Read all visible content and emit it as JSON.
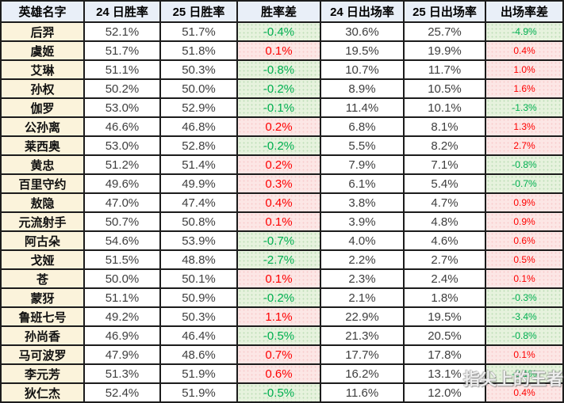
{
  "chart_data": {
    "type": "table",
    "columns": [
      "英雄名字",
      "24 日胜率",
      "25 日胜率",
      "胜率差",
      "24 日出场率",
      "25 日出场率",
      "出场率差"
    ],
    "rows": [
      [
        "后羿",
        "52.1%",
        "51.7%",
        "-0.4%",
        "30.6%",
        "25.7%",
        "-4.9%"
      ],
      [
        "虞姬",
        "51.7%",
        "51.8%",
        "0.1%",
        "19.5%",
        "19.9%",
        "0.4%"
      ],
      [
        "艾琳",
        "51.1%",
        "50.3%",
        "-0.8%",
        "10.7%",
        "11.7%",
        "1.0%"
      ],
      [
        "孙权",
        "50.2%",
        "50.0%",
        "-0.2%",
        "8.9%",
        "10.5%",
        "1.6%"
      ],
      [
        "伽罗",
        "53.0%",
        "52.9%",
        "-0.1%",
        "11.4%",
        "10.1%",
        "-1.3%"
      ],
      [
        "公孙离",
        "46.6%",
        "46.8%",
        "0.2%",
        "6.8%",
        "8.1%",
        "1.3%"
      ],
      [
        "莱西奥",
        "53.0%",
        "52.8%",
        "-0.2%",
        "5.5%",
        "8.2%",
        "2.7%"
      ],
      [
        "黄忠",
        "51.2%",
        "51.4%",
        "0.2%",
        "7.9%",
        "7.1%",
        "-0.8%"
      ],
      [
        "百里守约",
        "49.6%",
        "49.9%",
        "0.3%",
        "6.1%",
        "5.4%",
        "-0.7%"
      ],
      [
        "敖隐",
        "47.0%",
        "47.4%",
        "0.4%",
        "3.8%",
        "4.7%",
        "0.9%"
      ],
      [
        "元流射手",
        "50.7%",
        "50.8%",
        "0.1%",
        "3.9%",
        "4.8%",
        "0.9%"
      ],
      [
        "阿古朵",
        "54.6%",
        "53.9%",
        "-0.7%",
        "4.0%",
        "4.6%",
        "0.6%"
      ],
      [
        "戈娅",
        "51.5%",
        "48.8%",
        "-2.7%",
        "2.2%",
        "2.7%",
        "0.5%"
      ],
      [
        "苍",
        "50.0%",
        "50.1%",
        "0.1%",
        "2.3%",
        "2.4%",
        "0.1%"
      ],
      [
        "蒙犽",
        "51.1%",
        "50.9%",
        "-0.2%",
        "2.1%",
        "1.8%",
        "-0.3%"
      ],
      [
        "鲁班七号",
        "49.2%",
        "50.3%",
        "1.1%",
        "22.9%",
        "19.5%",
        "-3.4%"
      ],
      [
        "孙尚香",
        "46.9%",
        "46.4%",
        "-0.5%",
        "21.3%",
        "20.5%",
        "-0.8%"
      ],
      [
        "马可波罗",
        "47.9%",
        "48.6%",
        "0.7%",
        "17.7%",
        "17.8%",
        "0.1%"
      ],
      [
        "李元芳",
        "51.3%",
        "51.9%",
        "0.6%",
        "16.2%",
        "13.1%",
        "-3.1%"
      ],
      [
        "狄仁杰",
        "52.4%",
        "51.9%",
        "-0.5%",
        "11.6%",
        "12.0%",
        "0.4%"
      ]
    ]
  },
  "watermark": {
    "text": "指尖上的王者"
  },
  "colors": {
    "header_bg": "#e9eff8",
    "hero_col_bg": "#fbf3db",
    "negative_text": "#00b050",
    "negative_bg": "#e6f2dd",
    "positive_text": "#fe0000",
    "positive_bg": "#fce6e5",
    "number_text": "#3e3e3e",
    "border": "#1c1c1c"
  }
}
